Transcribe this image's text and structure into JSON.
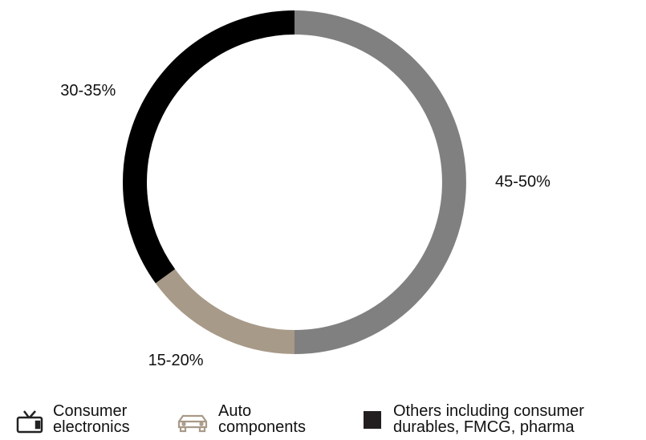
{
  "chart_data": {
    "type": "donut",
    "categories": [
      "Consumer electronics",
      "Auto components",
      "Others including consumer durables, FMCG, pharma"
    ],
    "values": [
      50,
      15,
      35
    ],
    "value_labels": [
      "45-50%",
      "15-20%",
      "30-35%"
    ],
    "colors": [
      "#808080",
      "#a89a88",
      "#000000"
    ]
  }
}
